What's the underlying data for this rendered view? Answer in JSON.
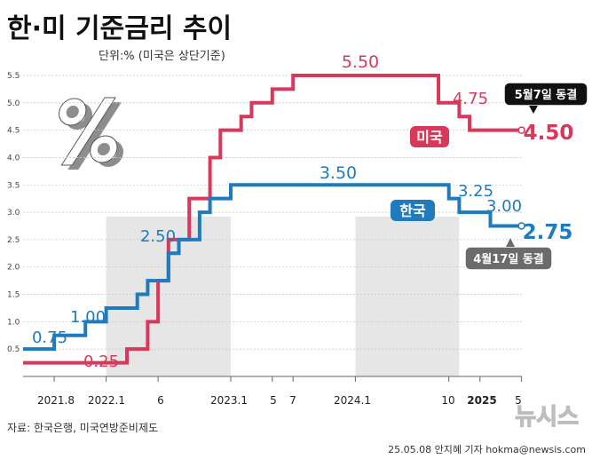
{
  "header": {
    "title": "한·미 기준금리 추이",
    "unit_note": "단위:% (미국은 상단기준)"
  },
  "footer": {
    "source": "자료: 한국은행, 미국연방준비제도",
    "credit": "25.05.08 안지혜 기자 hokma@newsis.com",
    "logo_text": "뉴시스"
  },
  "colors": {
    "us": "#d8395a",
    "korea": "#1f7bbd",
    "grid": "#c9c9c9",
    "band": "#e6e6e6"
  },
  "chart_data": {
    "type": "line",
    "title": "한·미 기준금리 추이",
    "ylabel": "%",
    "ylim": [
      0,
      5.5
    ],
    "yticks": [
      "0.5",
      "1.0",
      "1.5",
      "2.0",
      "2.5",
      "3.0",
      "3.5",
      "4.0",
      "4.5",
      "5.0",
      "5.5"
    ],
    "xlim": [
      "2021-05",
      "2025-05"
    ],
    "xtick_labels": [
      {
        "label": "2021.8",
        "date": "2021-08"
      },
      {
        "label": "2022.1",
        "date": "2022-01"
      },
      {
        "label": "6",
        "date": "2022-06"
      },
      {
        "label": "2023.1",
        "date": "2023-01"
      },
      {
        "label": "5",
        "date": "2023-05"
      },
      {
        "label": "7",
        "date": "2023-07"
      },
      {
        "label": "2024.1",
        "date": "2024-01"
      },
      {
        "label": "10",
        "date": "2024-10"
      },
      {
        "label": "2025",
        "date": "2025-01"
      },
      {
        "label": "5",
        "date": "2025-05"
      }
    ],
    "series": [
      {
        "name": "미국",
        "key": "us",
        "steps": [
          {
            "date": "2021-05",
            "value": 0.25
          },
          {
            "date": "2022-03",
            "value": 0.5
          },
          {
            "date": "2022-05",
            "value": 1.0
          },
          {
            "date": "2022-06",
            "value": 1.75
          },
          {
            "date": "2022-07",
            "value": 2.5
          },
          {
            "date": "2022-09",
            "value": 3.25
          },
          {
            "date": "2022-11",
            "value": 4.0
          },
          {
            "date": "2022-12",
            "value": 4.5
          },
          {
            "date": "2023-02",
            "value": 4.75
          },
          {
            "date": "2023-03",
            "value": 5.0
          },
          {
            "date": "2023-05",
            "value": 5.25
          },
          {
            "date": "2023-07",
            "value": 5.5
          },
          {
            "date": "2024-09",
            "value": 5.0
          },
          {
            "date": "2024-11",
            "value": 4.75
          },
          {
            "date": "2024-12",
            "value": 4.5
          },
          {
            "date": "2025-05",
            "value": 4.5
          }
        ]
      },
      {
        "name": "한국",
        "key": "korea",
        "steps": [
          {
            "date": "2021-05",
            "value": 0.5
          },
          {
            "date": "2021-08",
            "value": 0.75
          },
          {
            "date": "2021-11",
            "value": 1.0
          },
          {
            "date": "2022-01",
            "value": 1.25
          },
          {
            "date": "2022-04",
            "value": 1.5
          },
          {
            "date": "2022-05",
            "value": 1.75
          },
          {
            "date": "2022-07",
            "value": 2.25
          },
          {
            "date": "2022-08",
            "value": 2.5
          },
          {
            "date": "2022-10",
            "value": 3.0
          },
          {
            "date": "2022-11",
            "value": 3.25
          },
          {
            "date": "2023-01",
            "value": 3.5
          },
          {
            "date": "2024-10",
            "value": 3.25
          },
          {
            "date": "2024-11",
            "value": 3.0
          },
          {
            "date": "2025-02",
            "value": 2.75
          },
          {
            "date": "2025-05",
            "value": 2.75
          }
        ]
      }
    ],
    "value_labels": [
      {
        "series": "korea",
        "text": "0.75"
      },
      {
        "series": "korea",
        "text": "1.00"
      },
      {
        "series": "korea",
        "text": "2.50"
      },
      {
        "series": "korea",
        "text": "3.50"
      },
      {
        "series": "korea",
        "text": "3.25"
      },
      {
        "series": "korea",
        "text": "3.00"
      },
      {
        "series": "korea",
        "text": "2.75"
      },
      {
        "series": "us",
        "text": "0.25"
      },
      {
        "series": "us",
        "text": "5.50"
      },
      {
        "series": "us",
        "text": "4.75"
      },
      {
        "series": "us",
        "text": "4.50"
      }
    ],
    "legend_tags": [
      {
        "series": "us",
        "text": "미국"
      },
      {
        "series": "korea",
        "text": "한국"
      }
    ],
    "callouts": [
      {
        "series": "us",
        "text": "5월7일 동결"
      },
      {
        "series": "korea",
        "text": "4월17일 동결"
      }
    ],
    "shaded_bands": [
      {
        "from": "2022-01",
        "to": "2023-01"
      },
      {
        "from": "2024-01",
        "to": "2024-11"
      }
    ]
  }
}
